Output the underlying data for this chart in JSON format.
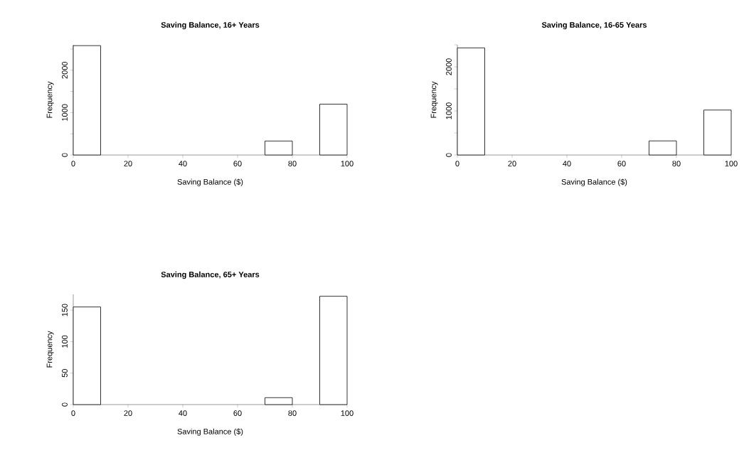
{
  "chart_data": [
    {
      "type": "histogram",
      "title": "Saving Balance, 16+ Years",
      "xlabel": "Saving Balance ($)",
      "ylabel": "Frequency",
      "color": "#ffffff",
      "bins": [
        0,
        10,
        20,
        30,
        40,
        50,
        60,
        70,
        80,
        90,
        100
      ],
      "values": [
        2580,
        0,
        0,
        0,
        0,
        0,
        0,
        330,
        0,
        1200
      ],
      "xlim": [
        0,
        100
      ],
      "ylim": [
        0,
        2600
      ],
      "xticks": [
        0,
        20,
        40,
        60,
        80,
        100
      ],
      "yticks": [
        0,
        {
          "value": 500,
          "label": null
        },
        1000,
        {
          "value": 1500,
          "label": null
        },
        2000,
        {
          "value": 2500,
          "label": null
        }
      ]
    },
    {
      "type": "histogram",
      "title": "Saving Balance, 16-65 Years",
      "xlabel": "Saving Balance ($)",
      "ylabel": "Frequency",
      "color": "#ffffff",
      "bins": [
        0,
        10,
        20,
        30,
        40,
        50,
        60,
        70,
        80,
        90,
        100
      ],
      "values": [
        2430,
        0,
        0,
        0,
        0,
        0,
        0,
        320,
        0,
        1020
      ],
      "xlim": [
        0,
        100
      ],
      "ylim": [
        0,
        2500
      ],
      "xticks": [
        0,
        20,
        40,
        60,
        80,
        100
      ],
      "yticks": [
        0,
        {
          "value": 500,
          "label": null
        },
        1000,
        {
          "value": 1500,
          "label": null
        },
        2000,
        {
          "value": 2500,
          "label": null
        }
      ]
    },
    {
      "type": "histogram",
      "title": "Saving Balance, 65+ Years",
      "xlabel": "Saving Balance ($)",
      "ylabel": "Frequency",
      "color": "#ffffff",
      "bins": [
        0,
        10,
        20,
        30,
        40,
        50,
        60,
        70,
        80,
        90,
        100
      ],
      "values": [
        155,
        0,
        0,
        0,
        0,
        0,
        0,
        11,
        0,
        172
      ],
      "xlim": [
        0,
        100
      ],
      "ylim": [
        0,
        175
      ],
      "xticks": [
        0,
        20,
        40,
        60,
        80,
        100
      ],
      "yticks": [
        0,
        50,
        100,
        150
      ]
    }
  ]
}
